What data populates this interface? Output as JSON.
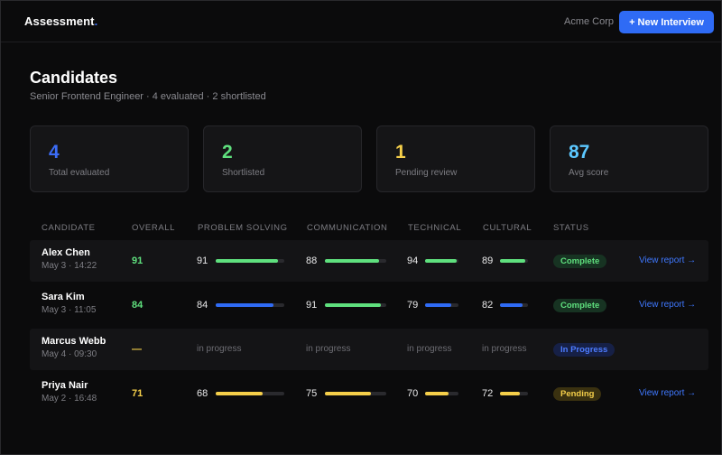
{
  "header": {
    "brand": "Assessment",
    "brand_dot": ".",
    "company": "Acme Corp",
    "new_interview_label": "+ New Interview"
  },
  "page": {
    "title": "Candidates",
    "subtitle": "Senior Frontend Engineer · 4 evaluated · 2 shortlisted"
  },
  "stats": [
    {
      "value": "4",
      "label": "Total evaluated",
      "color": "#3b6cf6"
    },
    {
      "value": "2",
      "label": "Shortlisted",
      "color": "#5fe07e"
    },
    {
      "value": "1",
      "label": "Pending review",
      "color": "#f5cf4a"
    },
    {
      "value": "87",
      "label": "Avg score",
      "color": "#5cc8ff"
    }
  ],
  "table": {
    "headers": {
      "candidate": "CANDIDATE",
      "overall": "OVERALL",
      "problem_solving": "PROBLEM SOLVING",
      "communication": "COMMUNICATION",
      "technical": "TECHNICAL",
      "cultural": "CULTURAL",
      "status": "STATUS"
    },
    "colors": {
      "green": "#5fe07e",
      "blue": "#2f6bf5",
      "yellow": "#f5cf4a"
    },
    "rows": [
      {
        "name": "Alex Chen",
        "date": "May 3 · 14:22",
        "overall": "91",
        "overall_color": "#5fe07e",
        "metrics": [
          {
            "value": "91",
            "fraction": 0.91,
            "color": "#5fe07e"
          },
          {
            "value": "88",
            "fraction": 0.88,
            "color": "#5fe07e"
          },
          {
            "value": "94",
            "fraction": 0.94,
            "color": "#5fe07e"
          },
          {
            "value": "89",
            "fraction": 0.89,
            "color": "#5fe07e"
          }
        ],
        "status": "Complete",
        "status_kind": "complete",
        "action": "View report →"
      },
      {
        "name": "Sara Kim",
        "date": "May 3 · 11:05",
        "overall": "84",
        "overall_color": "#5fe07e",
        "metrics": [
          {
            "value": "84",
            "fraction": 0.84,
            "color": "#2f6bf5"
          },
          {
            "value": "91",
            "fraction": 0.91,
            "color": "#5fe07e"
          },
          {
            "value": "79",
            "fraction": 0.79,
            "color": "#2f6bf5"
          },
          {
            "value": "82",
            "fraction": 0.82,
            "color": "#2f6bf5"
          }
        ],
        "status": "Complete",
        "status_kind": "complete",
        "action": "View report →"
      },
      {
        "name": "Marcus Webb",
        "date": "May 4 · 09:30",
        "overall": "—",
        "overall_color": "#f5cf4a",
        "in_progress_text": "in progress",
        "status": "In Progress",
        "status_kind": "progress",
        "action": ""
      },
      {
        "name": "Priya Nair",
        "date": "May 2 · 16:48",
        "overall": "71",
        "overall_color": "#f5cf4a",
        "metrics": [
          {
            "value": "68",
            "fraction": 0.68,
            "color": "#f5cf4a"
          },
          {
            "value": "75",
            "fraction": 0.75,
            "color": "#f5cf4a"
          },
          {
            "value": "70",
            "fraction": 0.7,
            "color": "#f5cf4a"
          },
          {
            "value": "72",
            "fraction": 0.72,
            "color": "#f5cf4a"
          }
        ],
        "status": "Pending",
        "status_kind": "pending",
        "action": "View report →"
      }
    ]
  }
}
